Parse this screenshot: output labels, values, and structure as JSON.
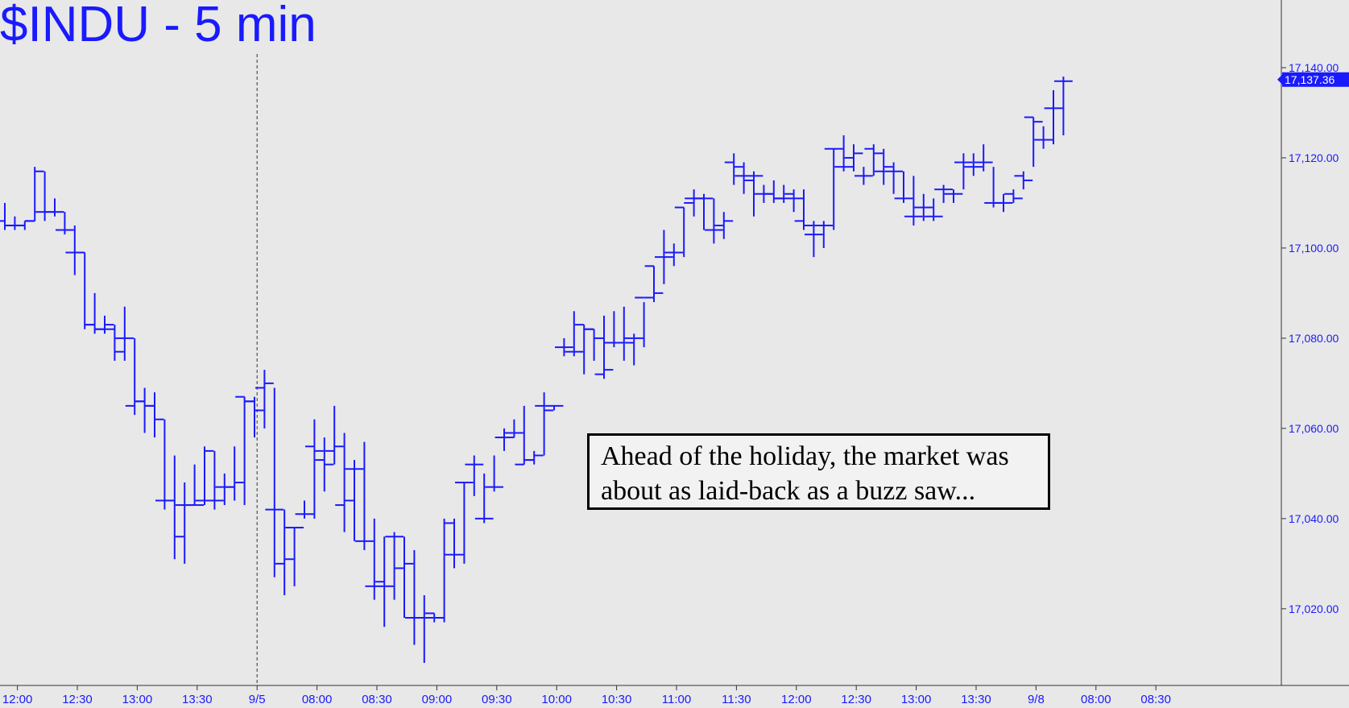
{
  "title": "$INDU - 5 min",
  "colors": {
    "bars": "#1a1aff",
    "background": "#e8e8e8",
    "text": "#1a1aff",
    "annotation_border": "#000000"
  },
  "annotation": {
    "line1": "Ahead of the holiday, the market was",
    "line2": "about as laid-back as a buzz saw..."
  },
  "chart_data": {
    "type": "ohlc",
    "title": "$INDU - 5 min",
    "ylim": [
      17003,
      17155
    ],
    "grid": false,
    "last_price": 17137.36,
    "last_price_label": "17,137.36",
    "y_ticks": [
      17020,
      17040,
      17060,
      17080,
      17100,
      17120,
      17140
    ],
    "y_tick_labels": [
      "17,020.00",
      "17,040.00",
      "17,060.00",
      "17,080.00",
      "17,100.00",
      "17,120.00",
      "17,140.00"
    ],
    "x_tick_labels": [
      "12:00",
      "12:30",
      "13:00",
      "13:30",
      "9/5",
      "08:00",
      "08:30",
      "09:00",
      "09:30",
      "10:00",
      "10:30",
      "11:00",
      "11:30",
      "12:00",
      "12:30",
      "13:00",
      "13:30",
      "9/8",
      "08:00",
      "08:30"
    ],
    "x_tick_index": [
      2,
      8,
      14,
      20,
      26,
      32,
      38,
      44,
      50,
      56,
      62,
      68,
      74,
      80,
      86,
      92,
      98,
      104,
      110,
      116
    ],
    "session_breaks": [
      26
    ],
    "bars": [
      [
        17106,
        17110,
        17104,
        17105
      ],
      [
        17105,
        17107,
        17104,
        17105
      ],
      [
        17105,
        17106,
        17104,
        17106
      ],
      [
        17106,
        17118,
        17106,
        17117
      ],
      [
        17108,
        17117,
        17106,
        17108
      ],
      [
        17108,
        17111,
        17107,
        17108
      ],
      [
        17104,
        17108,
        17103,
        17104
      ],
      [
        17099,
        17105,
        17094,
        17099
      ],
      [
        17099,
        17099,
        17082,
        17083
      ],
      [
        17083,
        17090,
        17081,
        17082
      ],
      [
        17082,
        17085,
        17081,
        17083
      ],
      [
        17082,
        17083,
        17075,
        17077
      ],
      [
        17080,
        17087,
        17075,
        17080
      ],
      [
        17065,
        17080,
        17063,
        17066
      ],
      [
        17066,
        17069,
        17059,
        17065
      ],
      [
        17065,
        17068,
        17058,
        17062
      ],
      [
        17044,
        17062,
        17042,
        17044
      ],
      [
        17044,
        17054,
        17031,
        17036
      ],
      [
        17043,
        17048,
        17030,
        17043
      ],
      [
        17043,
        17052,
        17043,
        17043
      ],
      [
        17044,
        17056,
        17043,
        17055
      ],
      [
        17044,
        17055,
        17042,
        17044
      ],
      [
        17047,
        17050,
        17043,
        17047
      ],
      [
        17047,
        17056,
        17044,
        17048
      ],
      [
        17067,
        17067,
        17043,
        17066
      ],
      [
        17066,
        17067,
        17058,
        17064
      ],
      [
        17069,
        17073,
        17060,
        17070
      ],
      [
        17042,
        17069,
        17027,
        17042
      ],
      [
        17030,
        17042,
        17023,
        17031
      ],
      [
        17038,
        17038,
        17025,
        17038
      ],
      [
        17041,
        17044,
        17040,
        17041
      ],
      [
        17056,
        17062,
        17040,
        17055
      ],
      [
        17053,
        17058,
        17046,
        17052
      ],
      [
        17055,
        17065,
        17052,
        17056
      ],
      [
        17043,
        17059,
        17037,
        17044
      ],
      [
        17051,
        17053,
        17035,
        17051
      ],
      [
        17035,
        17057,
        17033,
        17035
      ],
      [
        17025,
        17040,
        17022,
        17025
      ],
      [
        17026,
        17036,
        17016,
        17025
      ],
      [
        17036,
        17037,
        17022,
        17036
      ],
      [
        17029,
        17036,
        17018,
        17030
      ],
      [
        17018,
        17033,
        17012,
        17018
      ],
      [
        17018,
        17023,
        17008,
        17018
      ],
      [
        17019,
        17019,
        17017,
        17018
      ],
      [
        17018,
        17040,
        17017,
        17039
      ],
      [
        17032,
        17040,
        17029,
        17032
      ],
      [
        17048,
        17048,
        17030,
        17048
      ],
      [
        17052,
        17054,
        17045,
        17052
      ],
      [
        17040,
        17050,
        17039,
        17040
      ],
      [
        17047,
        17054,
        17046,
        17047
      ],
      [
        17058,
        17060,
        17055,
        17059
      ],
      [
        17058,
        17062,
        17058,
        17059
      ],
      [
        17052,
        17065,
        17052,
        17053
      ],
      [
        17053,
        17055,
        17052,
        17054
      ],
      [
        17065,
        17068,
        17054,
        17064
      ],
      [
        17065,
        17065,
        17064,
        17065
      ],
      [
        17078,
        17080,
        17076,
        17078
      ],
      [
        17077,
        17086,
        17076,
        17077
      ],
      [
        17083,
        17083,
        17072,
        17082
      ],
      [
        17082,
        17082,
        17075,
        17080
      ],
      [
        17072,
        17085,
        17071,
        17073
      ],
      [
        17079,
        17086,
        17078,
        17079
      ],
      [
        17079,
        17087,
        17075,
        17080
      ],
      [
        17079,
        17081,
        17074,
        17080
      ],
      [
        17089,
        17088,
        17078,
        17089
      ],
      [
        17096,
        17096,
        17088,
        17090
      ],
      [
        17098,
        17104,
        17092,
        17098
      ],
      [
        17099,
        17101,
        17096,
        17099
      ],
      [
        17109,
        17109,
        17098,
        17110
      ],
      [
        17111,
        17113,
        17107,
        17111
      ],
      [
        17111,
        17112,
        17104,
        17111
      ],
      [
        17104,
        17111,
        17101,
        17104
      ],
      [
        17105,
        17108,
        17102,
        17106
      ],
      [
        17119,
        17121,
        17114,
        17118
      ],
      [
        17116,
        17119,
        17112,
        17116
      ],
      [
        17115,
        17117,
        17107,
        17116
      ],
      [
        17112,
        17114,
        17110,
        17112
      ],
      [
        17112,
        17115,
        17110,
        17111
      ],
      [
        17111,
        17114,
        17110,
        17111
      ],
      [
        17112,
        17113,
        17108,
        17111
      ],
      [
        17106,
        17113,
        17104,
        17105
      ],
      [
        17103,
        17106,
        17098,
        17103
      ],
      [
        17105,
        17106,
        17100,
        17105
      ],
      [
        17122,
        17122,
        17104,
        17122
      ],
      [
        17118,
        17125,
        17117,
        17118
      ],
      [
        17120,
        17123,
        17117,
        17121
      ],
      [
        17116,
        17118,
        17114,
        17116
      ],
      [
        17122,
        17123,
        17116,
        17121
      ],
      [
        17117,
        17122,
        17114,
        17118
      ],
      [
        17117,
        17119,
        17112,
        17117
      ],
      [
        17111,
        17117,
        17110,
        17111
      ],
      [
        17107,
        17116,
        17105,
        17107
      ],
      [
        17109,
        17112,
        17106,
        17109
      ],
      [
        17107,
        17111,
        17106,
        17107
      ],
      [
        17113,
        17114,
        17110,
        17113
      ],
      [
        17112,
        17113,
        17110,
        17112
      ],
      [
        17119,
        17121,
        17113,
        17119
      ],
      [
        17118,
        17121,
        17116,
        17118
      ],
      [
        17119,
        17123,
        17117,
        17119
      ],
      [
        17110,
        17118,
        17109,
        17110
      ],
      [
        17110,
        17112,
        17108,
        17110
      ],
      [
        17112,
        17113,
        17110,
        17111
      ],
      [
        17116,
        17117,
        17113,
        17115
      ],
      [
        17129,
        17129,
        17118,
        17128
      ],
      [
        17124,
        17127,
        17122,
        17124
      ],
      [
        17131,
        17135,
        17123,
        17131
      ],
      [
        17137,
        17138,
        17125,
        17137
      ]
    ]
  }
}
